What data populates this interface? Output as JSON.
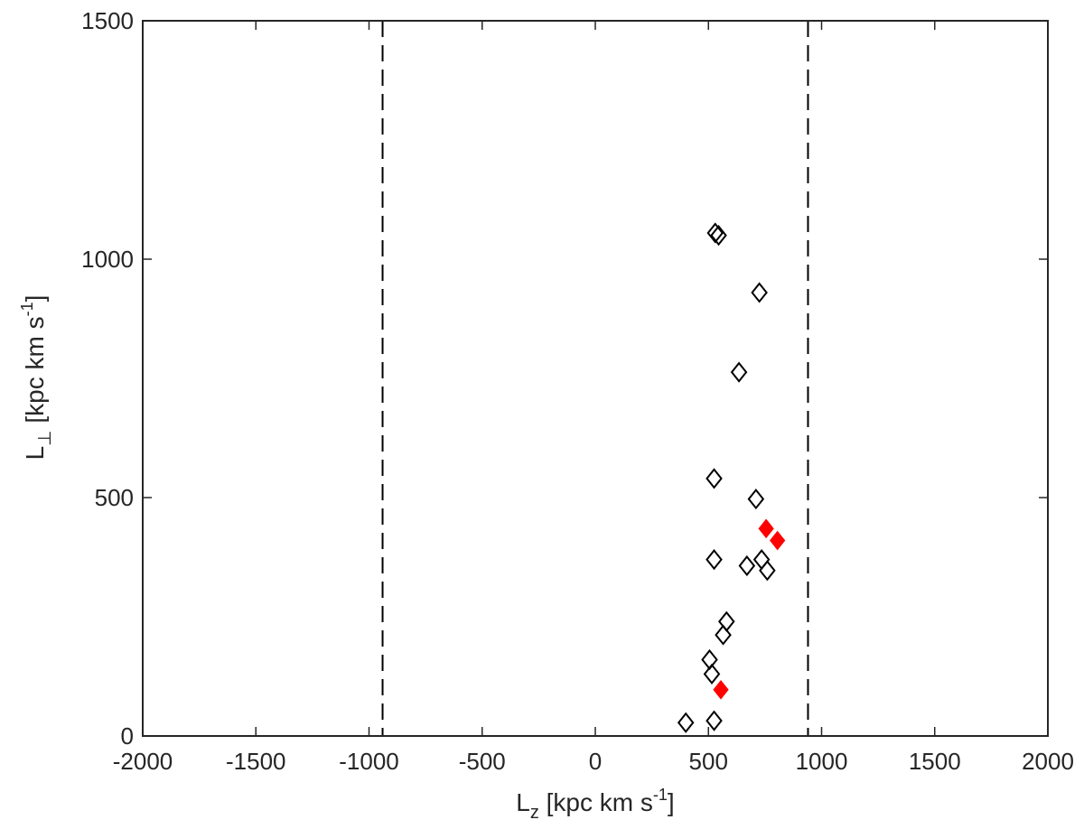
{
  "chart_data": {
    "type": "scatter",
    "xlabel": {
      "base": "L",
      "sub": "z",
      "before_sup": " [kpc km s",
      "sup": "-1",
      "after_sup": "]"
    },
    "ylabel": {
      "base": "L",
      "sub": "⊥",
      "before_sup": " [kpc km s",
      "sup": "-1",
      "after_sup": "]"
    },
    "xlim": [
      -2000,
      2000
    ],
    "ylim": [
      0,
      1500
    ],
    "xticks": [
      -2000,
      -1500,
      -1000,
      -500,
      0,
      500,
      1000,
      1500,
      2000
    ],
    "yticks": [
      0,
      500,
      1000,
      1500
    ],
    "xtick_labels": [
      "-2000",
      "-1500",
      "-1000",
      "-500",
      "0",
      "500",
      "1000",
      "1500",
      "2000"
    ],
    "ytick_labels": [
      "0",
      "500",
      "1000",
      "1500"
    ],
    "grid": false,
    "reference_lines": [
      {
        "orientation": "vertical",
        "x": -940,
        "style": "dashed",
        "color": "#000000"
      },
      {
        "orientation": "vertical",
        "x": 940,
        "style": "dashed",
        "color": "#000000"
      }
    ],
    "series": [
      {
        "marker": "diamond-open",
        "color": "#000000",
        "points": [
          {
            "x": 530,
            "y": 1055
          },
          {
            "x": 545,
            "y": 1050
          },
          {
            "x": 725,
            "y": 930
          },
          {
            "x": 635,
            "y": 763
          },
          {
            "x": 525,
            "y": 540
          },
          {
            "x": 710,
            "y": 497
          },
          {
            "x": 525,
            "y": 370
          },
          {
            "x": 735,
            "y": 370
          },
          {
            "x": 670,
            "y": 357
          },
          {
            "x": 760,
            "y": 347
          },
          {
            "x": 580,
            "y": 240
          },
          {
            "x": 565,
            "y": 212
          },
          {
            "x": 505,
            "y": 160
          },
          {
            "x": 515,
            "y": 130
          },
          {
            "x": 400,
            "y": 28
          },
          {
            "x": 525,
            "y": 32
          }
        ]
      },
      {
        "marker": "diamond-filled",
        "color": "#ff0000",
        "points": [
          {
            "x": 755,
            "y": 435
          },
          {
            "x": 805,
            "y": 410
          },
          {
            "x": 555,
            "y": 97
          }
        ]
      }
    ]
  }
}
